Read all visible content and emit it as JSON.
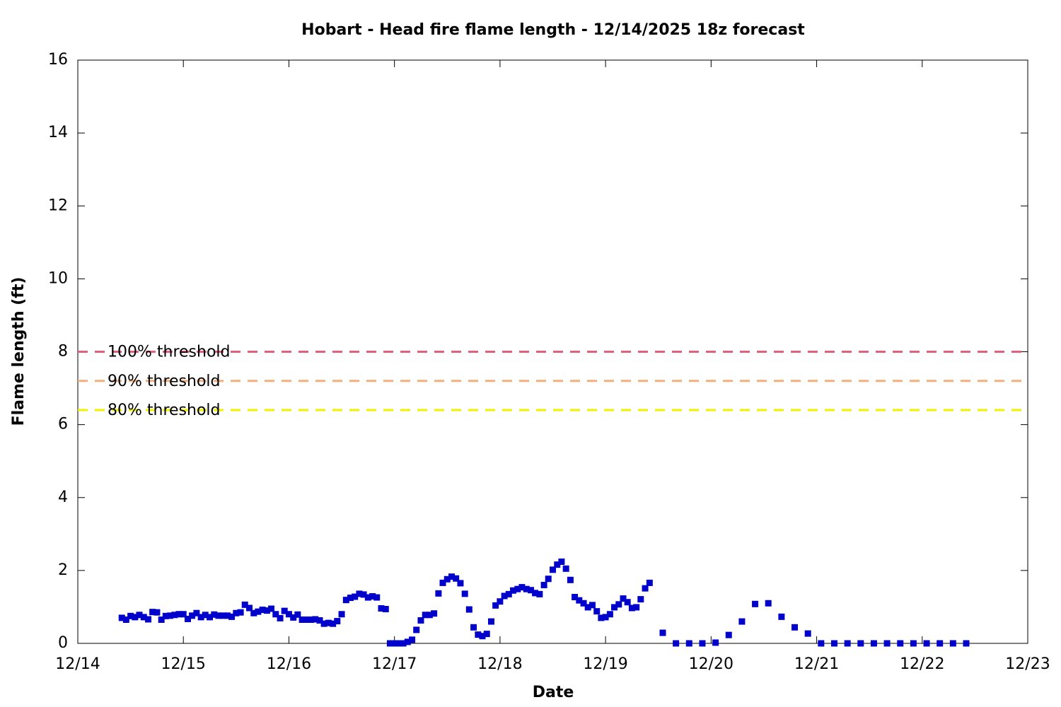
{
  "chart_data": {
    "type": "scatter",
    "title": "Hobart - Head fire flame length - 12/14/2025 18z forecast",
    "x_label": "Date",
    "y_label": "Flame length (ft)",
    "color": "#0000cc",
    "x": [
      14.417,
      14.458,
      14.5,
      14.542,
      14.583,
      14.625,
      14.667,
      14.708,
      14.75,
      14.792,
      14.833,
      14.875,
      14.917,
      14.958,
      15.0,
      15.042,
      15.083,
      15.125,
      15.167,
      15.208,
      15.25,
      15.292,
      15.333,
      15.375,
      15.417,
      15.458,
      15.5,
      15.542,
      15.583,
      15.625,
      15.667,
      15.708,
      15.75,
      15.792,
      15.833,
      15.875,
      15.917,
      15.958,
      16.0,
      16.042,
      16.083,
      16.125,
      16.167,
      16.208,
      16.25,
      16.292,
      16.333,
      16.375,
      16.417,
      16.458,
      16.5,
      16.542,
      16.583,
      16.625,
      16.667,
      16.708,
      16.75,
      16.792,
      16.833,
      16.875,
      16.917,
      16.958,
      17.0,
      17.042,
      17.083,
      17.125,
      17.167,
      17.208,
      17.25,
      17.292,
      17.333,
      17.375,
      17.417,
      17.458,
      17.5,
      17.542,
      17.583,
      17.625,
      17.667,
      17.708,
      17.75,
      17.792,
      17.833,
      17.875,
      17.917,
      17.958,
      18.0,
      18.042,
      18.083,
      18.125,
      18.167,
      18.208,
      18.25,
      18.292,
      18.333,
      18.375,
      18.417,
      18.458,
      18.5,
      18.542,
      18.583,
      18.625,
      18.667,
      18.708,
      18.75,
      18.792,
      18.833,
      18.875,
      18.917,
      18.958,
      19.0,
      19.042,
      19.083,
      19.125,
      19.167,
      19.208,
      19.25,
      19.292,
      19.333,
      19.375,
      19.417,
      19.542,
      19.667,
      19.792,
      19.917,
      20.042,
      20.167,
      20.292,
      20.417,
      20.542,
      20.667,
      20.792,
      20.917,
      21.042,
      21.167,
      21.292,
      21.417,
      21.542,
      21.667,
      21.792,
      21.917,
      22.042,
      22.167,
      22.292,
      22.417
    ],
    "values": [
      0.7,
      0.65,
      0.75,
      0.72,
      0.78,
      0.72,
      0.66,
      0.86,
      0.85,
      0.65,
      0.75,
      0.76,
      0.78,
      0.8,
      0.8,
      0.67,
      0.76,
      0.83,
      0.72,
      0.78,
      0.72,
      0.79,
      0.76,
      0.76,
      0.76,
      0.73,
      0.83,
      0.85,
      1.06,
      0.97,
      0.83,
      0.87,
      0.92,
      0.9,
      0.95,
      0.8,
      0.69,
      0.89,
      0.8,
      0.71,
      0.79,
      0.65,
      0.65,
      0.65,
      0.66,
      0.63,
      0.54,
      0.56,
      0.54,
      0.61,
      0.8,
      1.19,
      1.25,
      1.28,
      1.36,
      1.34,
      1.26,
      1.29,
      1.26,
      0.96,
      0.94,
      0,
      0,
      0,
      0,
      0.04,
      0.1,
      0.37,
      0.63,
      0.78,
      0.78,
      0.82,
      1.37,
      1.66,
      1.76,
      1.83,
      1.78,
      1.65,
      1.36,
      0.93,
      0.44,
      0.24,
      0.2,
      0.26,
      0.6,
      1.04,
      1.15,
      1.3,
      1.35,
      1.45,
      1.49,
      1.54,
      1.49,
      1.46,
      1.38,
      1.35,
      1.6,
      1.77,
      2.02,
      2.16,
      2.24,
      2.05,
      1.74,
      1.27,
      1.18,
      1.1,
      0.99,
      1.05,
      0.88,
      0.7,
      0.72,
      0.8,
      0.99,
      1.07,
      1.23,
      1.13,
      0.97,
      0.99,
      1.21,
      1.51,
      1.66,
      0.29,
      0,
      0,
      0,
      0.02,
      0.23,
      0.6,
      1.08,
      1.1,
      0.73,
      0.44,
      0.27,
      0,
      0,
      0,
      0,
      0,
      0,
      0,
      0,
      0,
      0,
      0,
      0
    ],
    "thresholds": [
      {
        "name": "100% threshold",
        "value": 8,
        "color": "#e0607e"
      },
      {
        "name": "90% threshold",
        "value": 7.2,
        "color": "#f4b07c"
      },
      {
        "name": "80% threshold",
        "value": 6.4,
        "color": "#f0f000"
      }
    ],
    "xlim": [
      14,
      23
    ],
    "xticks": [
      {
        "value": 14,
        "label": "12/14"
      },
      {
        "value": 15,
        "label": "12/15"
      },
      {
        "value": 16,
        "label": "12/16"
      },
      {
        "value": 17,
        "label": "12/17"
      },
      {
        "value": 18,
        "label": "12/18"
      },
      {
        "value": 19,
        "label": "12/19"
      },
      {
        "value": 20,
        "label": "12/20"
      },
      {
        "value": 21,
        "label": "12/21"
      },
      {
        "value": 22,
        "label": "12/22"
      },
      {
        "value": 23,
        "label": "12/23"
      }
    ],
    "ylim": [
      0,
      16
    ],
    "yticks": [
      0,
      2,
      4,
      6,
      8,
      10,
      12,
      14,
      16
    ]
  }
}
